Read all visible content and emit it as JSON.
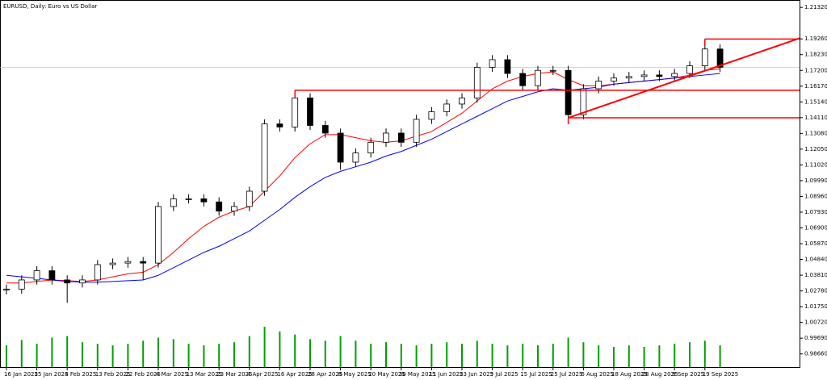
{
  "chart_data": {
    "type": "candlestick",
    "title": "EURUSD, Daily:  Euro vs US Dollar",
    "categories": [
      "16 Jan 2025",
      null,
      "25 Jan 2025",
      null,
      "4 Feb 2025",
      null,
      "13 Feb 2025",
      null,
      "22 Feb 2025",
      null,
      "4 Mar 2025",
      null,
      "13 Mar 2025",
      null,
      "23 Mar 2025",
      null,
      "4 Apr 2025",
      null,
      "16 Apr 2025",
      null,
      "28 Apr 2025",
      null,
      "8 May 2025",
      null,
      "20 May 2025",
      null,
      "30 May 2025",
      null,
      "11 Jun 2025",
      null,
      "23 Jun 2025",
      null,
      "3 Jul 2025",
      null,
      "15 Jul 2025",
      null,
      "25 Jul 2025",
      null,
      "6 Aug 2025",
      null,
      "18 Aug 2025",
      null,
      "28 Aug 2025",
      null,
      "9 Sep 2025",
      null,
      "19 Sep 2025",
      null
    ],
    "open": [
      1.0285,
      1.029,
      1.035,
      1.041,
      1.035,
      1.033,
      1.035,
      1.045,
      1.046,
      1.047,
      1.046,
      1.083,
      1.088,
      1.088,
      1.086,
      1.08,
      1.083,
      1.093,
      1.137,
      1.135,
      1.154,
      1.136,
      1.131,
      1.112,
      1.118,
      1.125,
      1.131,
      1.125,
      1.14,
      1.145,
      1.15,
      1.154,
      1.174,
      1.179,
      1.17,
      1.162,
      1.172,
      1.172,
      1.143,
      1.16,
      1.165,
      1.167,
      1.168,
      1.169,
      1.168,
      1.17,
      1.175,
      1.186
    ],
    "high": [
      1.032,
      1.038,
      1.044,
      1.044,
      1.038,
      1.038,
      1.048,
      1.049,
      1.05,
      1.05,
      1.086,
      1.091,
      1.091,
      1.091,
      1.089,
      1.086,
      1.096,
      1.14,
      1.14,
      1.159,
      1.157,
      1.139,
      1.134,
      1.121,
      1.128,
      1.134,
      1.134,
      1.143,
      1.148,
      1.153,
      1.157,
      1.177,
      1.182,
      1.182,
      1.173,
      1.175,
      1.175,
      1.175,
      1.163,
      1.168,
      1.17,
      1.171,
      1.172,
      1.172,
      1.173,
      1.178,
      1.1925,
      1.189
    ],
    "low": [
      1.0255,
      1.026,
      1.032,
      1.032,
      1.02,
      1.03,
      1.032,
      1.042,
      1.043,
      1.035,
      1.043,
      1.08,
      1.085,
      1.083,
      1.077,
      1.077,
      1.08,
      1.09,
      1.132,
      1.132,
      1.133,
      1.128,
      1.107,
      1.109,
      1.115,
      1.122,
      1.122,
      1.122,
      1.137,
      1.142,
      1.147,
      1.151,
      1.171,
      1.167,
      1.159,
      1.159,
      1.169,
      1.141,
      1.14,
      1.157,
      1.162,
      1.164,
      1.165,
      1.165,
      1.165,
      1.167,
      1.172,
      1.171
    ],
    "close": [
      1.029,
      1.035,
      1.041,
      1.035,
      1.033,
      1.035,
      1.045,
      1.046,
      1.047,
      1.046,
      1.083,
      1.088,
      1.088,
      1.086,
      1.08,
      1.083,
      1.093,
      1.137,
      1.135,
      1.154,
      1.136,
      1.131,
      1.112,
      1.118,
      1.125,
      1.131,
      1.125,
      1.14,
      1.145,
      1.15,
      1.154,
      1.174,
      1.179,
      1.17,
      1.162,
      1.172,
      1.172,
      1.143,
      1.16,
      1.165,
      1.167,
      1.168,
      1.169,
      1.168,
      1.17,
      1.175,
      1.186,
      1.174
    ],
    "volume": [
      28,
      35,
      30,
      38,
      40,
      32,
      30,
      28,
      30,
      34,
      38,
      36,
      30,
      28,
      30,
      32,
      40,
      52,
      46,
      42,
      36,
      34,
      40,
      34,
      30,
      32,
      30,
      28,
      30,
      32,
      30,
      34,
      30,
      28,
      30,
      28,
      30,
      38,
      32,
      28,
      26,
      28,
      26,
      28,
      30,
      32,
      34,
      28
    ],
    "volume_color": "#00a000",
    "up_color": "#ffffff",
    "down_color": "#000000",
    "ma": [
      {
        "color": "#ff0000",
        "values": [
          1.033,
          1.033,
          1.034,
          1.035,
          1.0345,
          1.034,
          1.035,
          1.037,
          1.039,
          1.04,
          1.045,
          1.053,
          1.062,
          1.07,
          1.076,
          1.08,
          1.083,
          1.093,
          1.103,
          1.115,
          1.124,
          1.13,
          1.13,
          1.128,
          1.126,
          1.125,
          1.126,
          1.129,
          1.132,
          1.138,
          1.144,
          1.152,
          1.16,
          1.165,
          1.168,
          1.17,
          1.171,
          1.166,
          1.162,
          1.162,
          1.163,
          1.164,
          1.165,
          1.166,
          1.167,
          1.169,
          1.172,
          1.173
        ]
      },
      {
        "color": "#0000ff",
        "values": [
          1.038,
          1.037,
          1.036,
          1.035,
          1.034,
          1.0335,
          1.0335,
          1.034,
          1.0345,
          1.035,
          1.038,
          1.043,
          1.048,
          1.053,
          1.057,
          1.062,
          1.067,
          1.074,
          1.081,
          1.089,
          1.096,
          1.102,
          1.106,
          1.109,
          1.112,
          1.116,
          1.119,
          1.123,
          1.127,
          1.132,
          1.137,
          1.142,
          1.147,
          1.152,
          1.155,
          1.158,
          1.16,
          1.159,
          1.16,
          1.161,
          1.163,
          1.164,
          1.165,
          1.166,
          1.167,
          1.168,
          1.169,
          1.17
        ]
      }
    ],
    "levels": [
      {
        "from": 46,
        "value": 1.1925
      },
      {
        "from": 19,
        "value": 1.159
      },
      {
        "from": 37,
        "value": 1.141
      }
    ],
    "trendline": {
      "from": 37,
      "start": 1.141,
      "end": 1.193
    },
    "line_color": "#ff0000",
    "ylim": [
      0.978,
      1.2175
    ],
    "yticks": [
      {
        "value": 1.2132,
        "label": "1.21320"
      },
      {
        "value": 1.1926,
        "label": "1.19260"
      },
      {
        "value": 1.1823,
        "label": "1.18230"
      },
      {
        "value": 1.172,
        "label": "1.17200"
      },
      {
        "value": 1.1617,
        "label": "1.16170"
      },
      {
        "value": 1.1514,
        "label": "1.15140"
      },
      {
        "value": 1.1411,
        "label": "1.14110"
      },
      {
        "value": 1.1308,
        "label": "1.13080"
      },
      {
        "value": 1.1205,
        "label": "1.12050"
      },
      {
        "value": 1.1102,
        "label": "1.11020"
      },
      {
        "value": 1.0999,
        "label": "1.09990"
      },
      {
        "value": 1.0896,
        "label": "1.08960"
      },
      {
        "value": 1.0793,
        "label": "1.07930"
      },
      {
        "value": 1.069,
        "label": "1.06900"
      },
      {
        "value": 1.0587,
        "label": "1.05870"
      },
      {
        "value": 1.0484,
        "label": "1.04840"
      },
      {
        "value": 1.0381,
        "label": "1.03810"
      },
      {
        "value": 1.0278,
        "label": "1.02780"
      },
      {
        "value": 1.0175,
        "label": "1.01750"
      },
      {
        "value": 1.0072,
        "label": "1.00720"
      },
      {
        "value": 0.9969,
        "label": "0.99690"
      },
      {
        "value": 0.9866,
        "label": "0.98660"
      }
    ]
  }
}
